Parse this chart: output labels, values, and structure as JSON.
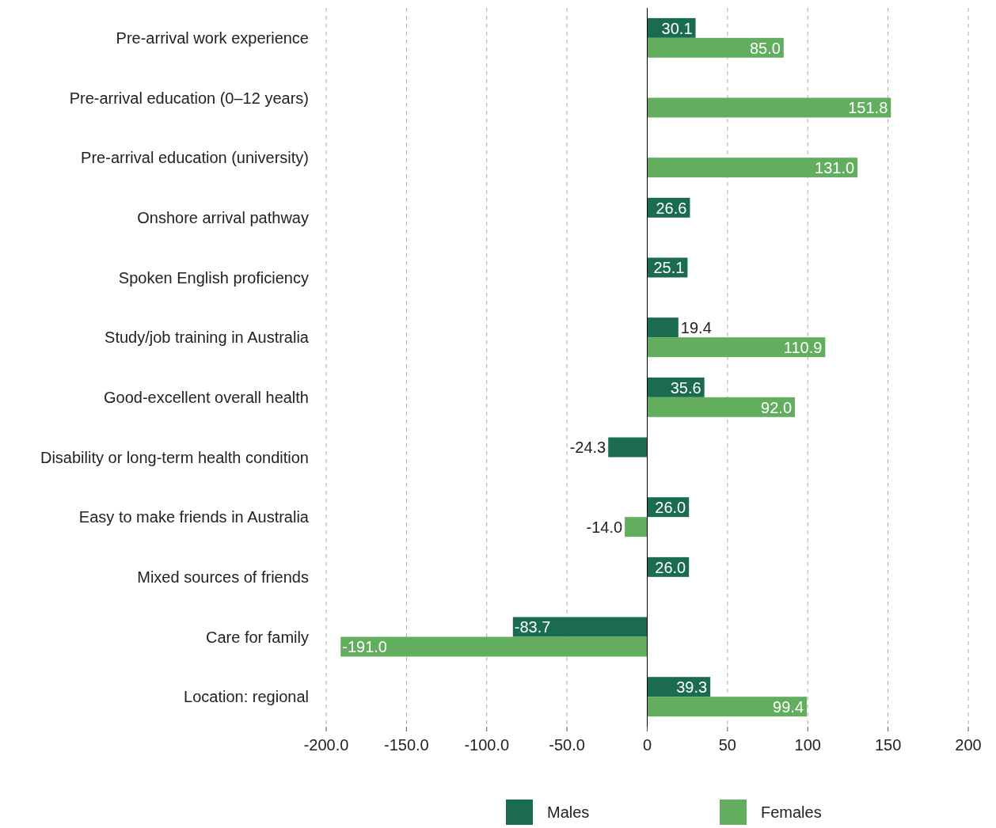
{
  "chart_data": {
    "type": "bar",
    "orientation": "horizontal",
    "categories": [
      "Pre-arrival work experience",
      "Pre-arrival education  (0–12 years)",
      "Pre-arrival education (university)",
      "Onshore arrival pathway",
      "Spoken English proficiency",
      "Study/job training in Australia",
      "Good-excellent overall health",
      "Disability or long-term health condition",
      "Easy to make friends in Australia",
      "Mixed sources of friends",
      "Care for family",
      "Location: regional"
    ],
    "series": [
      {
        "name": "Males",
        "color": "#1a6b4f",
        "values": [
          30.1,
          null,
          null,
          26.6,
          25.1,
          19.4,
          35.6,
          -24.3,
          26.0,
          26.0,
          -83.7,
          39.3
        ],
        "value_labels": [
          "30.1",
          null,
          null,
          "26.6",
          "25.1",
          "19.4",
          "35.6",
          "-24.3",
          "26.0",
          "26.0",
          "-83.7",
          "39.3"
        ]
      },
      {
        "name": "Females",
        "color": "#62ad5e",
        "values": [
          85.0,
          151.8,
          131.0,
          null,
          null,
          110.9,
          92.0,
          null,
          -14.0,
          null,
          -191.0,
          99.4
        ],
        "value_labels": [
          "85.0",
          "151.8",
          "131.0",
          null,
          null,
          "110.9",
          "92.0",
          null,
          "-14.0",
          null,
          "-191.0",
          "99.4"
        ]
      }
    ],
    "xlim": [
      -200,
      200
    ],
    "xticks": [
      {
        "value": -200,
        "label": "-200.0"
      },
      {
        "value": -150,
        "label": "-150.0"
      },
      {
        "value": -100,
        "label": "-100.0"
      },
      {
        "value": -50,
        "label": "-50.0"
      },
      0,
      50,
      100,
      150,
      200
    ],
    "grid": "x",
    "legend": "bottom"
  }
}
